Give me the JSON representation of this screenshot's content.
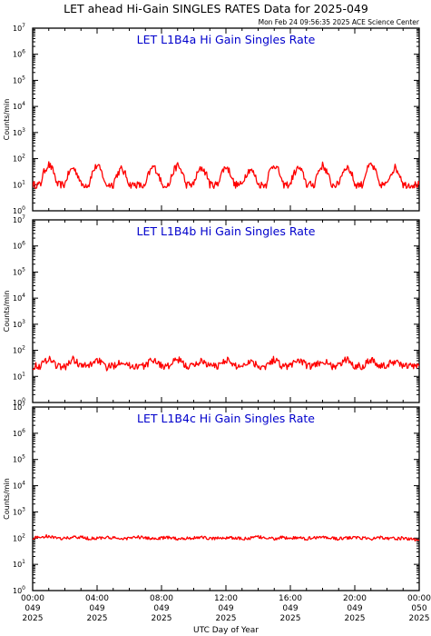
{
  "header": {
    "title": "LET ahead Hi-Gain SINGLES RATES Data for 2025-049",
    "timestamp": "Mon Feb 24 09:56:35 2025 ACE Science Center"
  },
  "colors": {
    "series": "#ff0000",
    "panel_title": "#0000cc",
    "axis": "#000000"
  },
  "chart_data": [
    {
      "type": "line",
      "title": "LET L1B4a Hi Gain Singles Rate",
      "ylabel": "Counts/min",
      "yscale": "log",
      "ylim": [
        1,
        10000000
      ],
      "xlim": [
        0,
        24
      ],
      "series": [
        {
          "values": [
            10,
            10,
            60,
            10,
            10,
            45,
            10,
            10,
            55,
            10,
            10,
            40,
            10,
            10,
            8,
            50,
            10,
            10,
            55,
            10,
            10,
            45,
            10,
            10,
            50,
            10,
            10,
            40,
            10,
            10,
            60,
            10,
            10,
            45,
            10,
            10,
            55,
            10,
            10,
            50,
            10,
            10,
            60,
            10,
            10,
            45,
            10,
            10,
            10
          ]
        }
      ]
    },
    {
      "type": "line",
      "title": "LET L1B4b Hi Gain Singles Rate",
      "ylabel": "Counts/min",
      "yscale": "log",
      "ylim": [
        1,
        10000000
      ],
      "xlim": [
        0,
        24
      ],
      "series": [
        {
          "values": [
            25,
            25,
            50,
            25,
            22,
            45,
            25,
            25,
            45,
            22,
            25,
            40,
            25,
            25,
            25,
            45,
            25,
            25,
            45,
            25,
            25,
            40,
            25,
            25,
            45,
            25,
            25,
            40,
            25,
            25,
            45,
            25,
            25,
            45,
            25,
            25,
            40,
            25,
            25,
            45,
            25,
            25,
            45,
            25,
            25,
            40,
            25,
            25,
            25
          ]
        }
      ]
    },
    {
      "type": "line",
      "title": "LET L1B4c Hi Gain Singles Rate",
      "ylabel": "Counts/min",
      "yscale": "log",
      "ylim": [
        1,
        10000000
      ],
      "xlim": [
        0,
        24
      ],
      "xlabel": "UTC Day of Year",
      "series": [
        {
          "values": [
            100,
            110,
            120,
            95,
            100,
            105,
            110,
            95,
            100,
            105,
            100,
            95,
            100,
            110,
            100,
            95,
            100,
            105,
            95,
            100,
            100,
            110,
            95,
            100,
            105,
            100,
            95,
            100,
            110,
            100,
            95,
            105,
            100,
            100,
            95,
            105,
            110,
            100,
            95,
            100,
            105,
            100,
            95,
            110,
            100,
            95,
            100,
            90,
            85
          ]
        }
      ]
    }
  ],
  "x_ticks": [
    {
      "time": "00:00",
      "day": "049",
      "year": "2025"
    },
    {
      "time": "04:00",
      "day": "049",
      "year": "2025"
    },
    {
      "time": "08:00",
      "day": "049",
      "year": "2025"
    },
    {
      "time": "12:00",
      "day": "049",
      "year": "2025"
    },
    {
      "time": "16:00",
      "day": "049",
      "year": "2025"
    },
    {
      "time": "20:00",
      "day": "049",
      "year": "2025"
    },
    {
      "time": "00:00",
      "day": "050",
      "year": "2025"
    }
  ],
  "y_ticks": [
    "10",
    "10",
    "10",
    "10",
    "10",
    "10",
    "10",
    "10"
  ],
  "y_tick_exponents": [
    "0",
    "1",
    "2",
    "3",
    "4",
    "5",
    "6",
    "7"
  ]
}
